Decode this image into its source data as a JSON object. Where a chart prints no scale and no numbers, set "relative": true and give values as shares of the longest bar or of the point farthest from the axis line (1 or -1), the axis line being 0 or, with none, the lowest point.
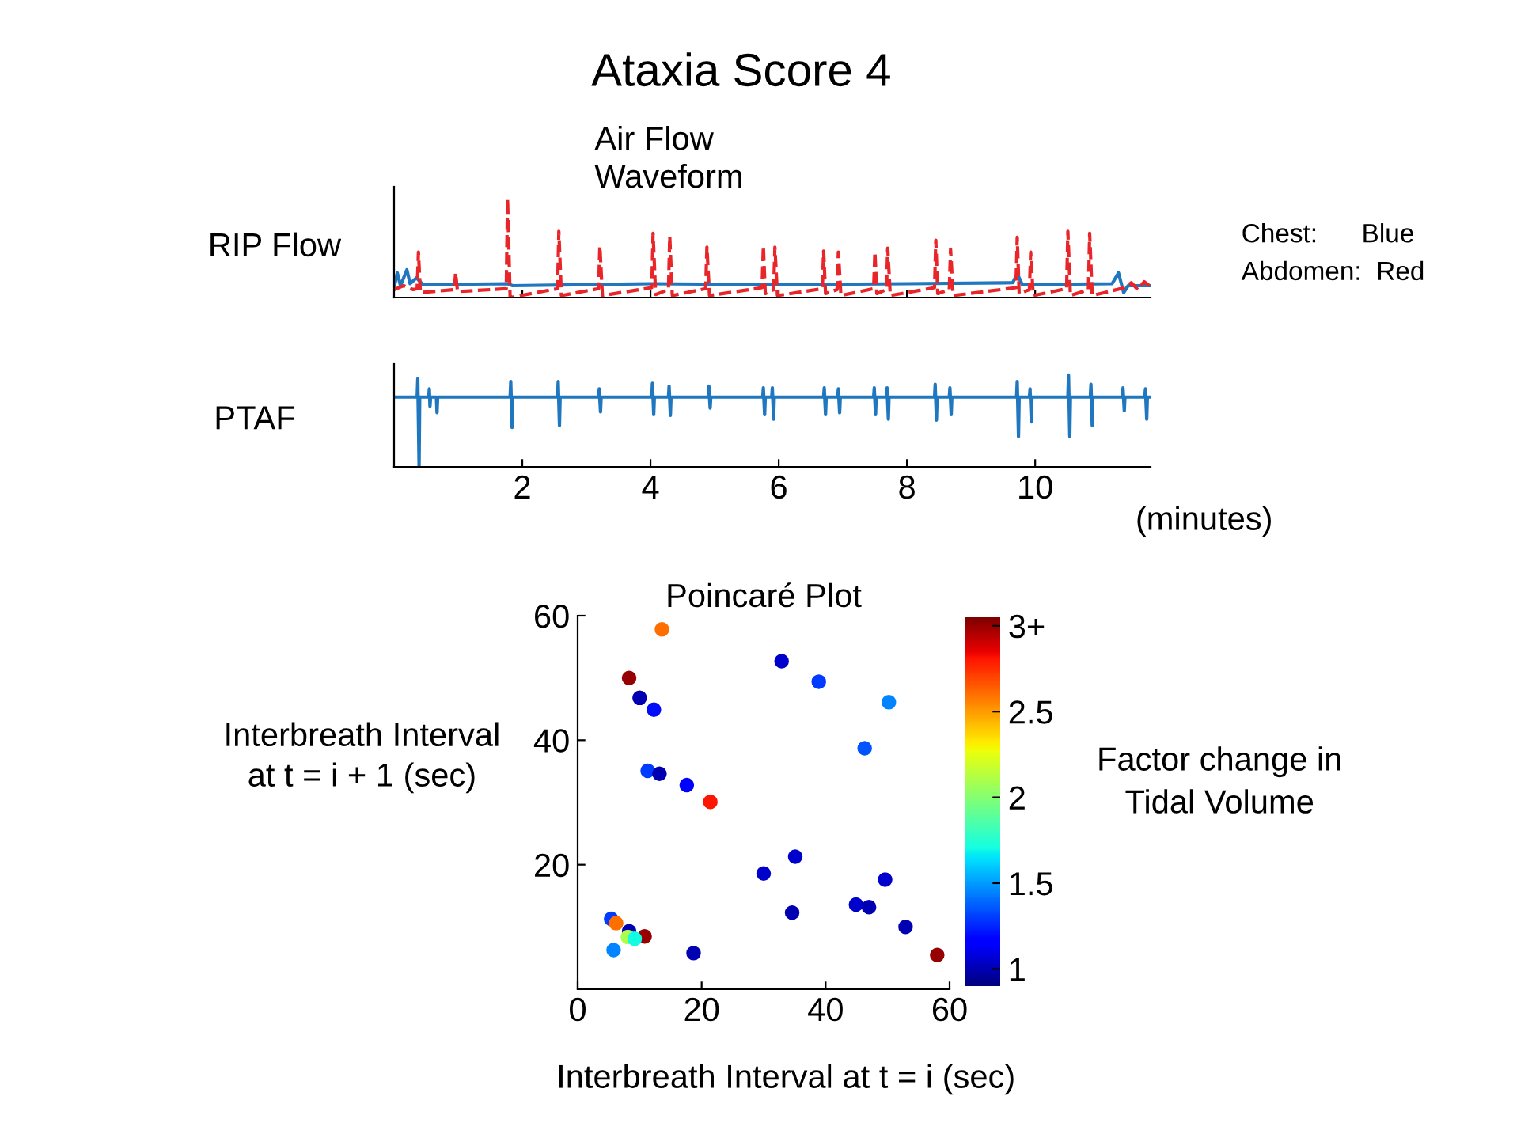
{
  "chart_data": [
    {
      "type": "line",
      "title": "Ataxia Score 4",
      "subtitle": "Air Flow\nWaveform",
      "ylabel": "RIP Flow",
      "relative": true,
      "xlim": [
        0,
        11.8
      ],
      "xticks": [
        2,
        4,
        6,
        8,
        10
      ],
      "tick_labels": false,
      "annotations": [
        "Chest:      Blue",
        "Abdomen:  Red"
      ],
      "series": [
        {
          "color": "#1f77c0",
          "line_style": "solid",
          "x": [
            0,
            0.05,
            0.1,
            0.2,
            0.25,
            0.35,
            0.45,
            1.77,
            1.85,
            4,
            6,
            8,
            9.65,
            9.72,
            9.8,
            11.2,
            11.3,
            11.38,
            11.45,
            11.78
          ],
          "values": [
            0.1,
            0.25,
            0.12,
            0.28,
            0.14,
            0.2,
            0.13,
            0.14,
            0.12,
            0.14,
            0.13,
            0.14,
            0.15,
            0.24,
            0.13,
            0.14,
            0.25,
            0.05,
            0.12,
            0.12
          ]
        },
        {
          "color": "#e8262a",
          "line_style": "dashed",
          "x": [
            0,
            0.15,
            0.3,
            0.36,
            0.38,
            0.41,
            0.94,
            0.96,
            0.99,
            1.75,
            1.77,
            1.81,
            2.55,
            2.57,
            2.61,
            3.19,
            3.21,
            3.25,
            4.02,
            4.04,
            4.08,
            4.28,
            4.3,
            4.34,
            4.86,
            4.88,
            4.92,
            5.74,
            5.76,
            5.79,
            5.92,
            5.94,
            5.98,
            6.68,
            6.7,
            6.73,
            6.91,
            6.93,
            6.97,
            7.48,
            7.5,
            7.53,
            7.68,
            7.7,
            7.74,
            8.43,
            8.45,
            8.48,
            8.66,
            8.68,
            8.72,
            9.7,
            9.72,
            9.75,
            9.91,
            9.93,
            9.97,
            10.49,
            10.51,
            10.55,
            10.83,
            10.85,
            10.89,
            11.4,
            11.5,
            11.6,
            11.7,
            11.78
          ],
          "values": [
            0.08,
            0.12,
            0.08,
            0.09,
            0.46,
            0.05,
            0.08,
            0.25,
            0.06,
            0.09,
            1.0,
            0.0,
            0.09,
            0.67,
            0.02,
            0.09,
            0.52,
            0.02,
            0.1,
            0.65,
            0.03,
            0.08,
            0.62,
            0.02,
            0.09,
            0.51,
            0.02,
            0.1,
            0.52,
            0.04,
            0.08,
            0.51,
            0.02,
            0.09,
            0.47,
            0.04,
            0.08,
            0.46,
            0.02,
            0.09,
            0.46,
            0.04,
            0.08,
            0.5,
            0.02,
            0.1,
            0.58,
            0.04,
            0.08,
            0.49,
            0.02,
            0.1,
            0.61,
            0.04,
            0.08,
            0.46,
            0.02,
            0.09,
            0.67,
            0.02,
            0.08,
            0.65,
            0.02,
            0.1,
            0.15,
            0.08,
            0.16,
            0.12
          ]
        }
      ]
    },
    {
      "type": "line",
      "ylabel": "PTAF",
      "xlabel": "(minutes)",
      "relative": true,
      "xlim": [
        0,
        11.8
      ],
      "xticks": [
        2,
        4,
        6,
        8,
        10
      ],
      "tick_labels": "x",
      "series": [
        {
          "color": "#1f77c0",
          "line_style": "solid",
          "x": [
            0,
            0.36,
            0.37,
            0.39,
            0.4,
            0.54,
            0.55,
            0.56,
            0.57,
            0.66,
            0.67,
            0.68,
            1.81,
            1.82,
            1.84,
            1.85,
            2.55,
            2.56,
            2.58,
            2.59,
            3.19,
            3.2,
            3.22,
            3.23,
            4.02,
            4.03,
            4.05,
            4.06,
            4.28,
            4.29,
            4.31,
            4.32,
            4.9,
            4.91,
            4.93,
            4.94,
            5.75,
            5.76,
            5.78,
            5.79,
            5.89,
            5.9,
            5.92,
            5.93,
            6.7,
            6.71,
            6.73,
            6.74,
            6.92,
            6.93,
            6.95,
            6.96,
            7.48,
            7.49,
            7.51,
            7.52,
            7.68,
            7.69,
            7.71,
            7.72,
            8.43,
            8.44,
            8.46,
            8.47,
            8.66,
            8.67,
            8.69,
            8.7,
            9.71,
            9.72,
            9.74,
            9.75,
            9.91,
            9.92,
            9.94,
            9.95,
            10.51,
            10.52,
            10.54,
            10.55,
            10.86,
            10.87,
            10.89,
            10.9,
            11.36,
            11.37,
            11.39,
            11.4,
            11.71,
            11.72,
            11.74,
            11.75,
            11.78
          ],
          "values": [
            0.76,
            0.76,
            0.96,
            0.0,
            0.76,
            0.76,
            0.85,
            0.66,
            0.76,
            0.76,
            0.59,
            0.76,
            0.76,
            0.93,
            0.43,
            0.76,
            0.76,
            0.93,
            0.45,
            0.76,
            0.76,
            0.85,
            0.6,
            0.76,
            0.76,
            0.91,
            0.57,
            0.76,
            0.76,
            0.88,
            0.56,
            0.76,
            0.76,
            0.88,
            0.64,
            0.76,
            0.76,
            0.86,
            0.57,
            0.76,
            0.76,
            0.86,
            0.52,
            0.76,
            0.76,
            0.86,
            0.57,
            0.76,
            0.76,
            0.85,
            0.59,
            0.76,
            0.76,
            0.86,
            0.57,
            0.76,
            0.76,
            0.86,
            0.52,
            0.76,
            0.76,
            0.9,
            0.51,
            0.76,
            0.76,
            0.86,
            0.57,
            0.76,
            0.76,
            0.93,
            0.33,
            0.76,
            0.76,
            0.85,
            0.49,
            0.76,
            0.76,
            1.0,
            0.33,
            0.76,
            0.76,
            0.9,
            0.45,
            0.76,
            0.76,
            0.86,
            0.61,
            0.76,
            0.76,
            0.85,
            0.52,
            0.76,
            0.76
          ]
        }
      ]
    },
    {
      "type": "scatter",
      "title": "Poincaré Plot",
      "xlabel": "Interbreath Interval at t = i (sec)",
      "ylabel": "Interbreath Interval\nat t = i + 1 (sec)",
      "clabel": "Factor change in\nTidal Volume",
      "xlim": [
        0,
        60
      ],
      "ylim": [
        0,
        60
      ],
      "xticks": [
        0,
        20,
        40,
        60
      ],
      "yticks": [
        20,
        40,
        60
      ],
      "clim": [
        0.9,
        3.05
      ],
      "cticks": [
        1,
        1.5,
        2,
        2.5,
        {
          "value": 3,
          "label": "3+"
        }
      ],
      "x": [
        13.6,
        8.3,
        10.0,
        12.3,
        11.3,
        13.2,
        17.6,
        21.4,
        32.9,
        38.9,
        50.2,
        46.3,
        35.1,
        30.0,
        49.6,
        44.9,
        47.0,
        34.6,
        52.9,
        58.0,
        18.7,
        5.4,
        6.2,
        8.3,
        10.8,
        8.1,
        9.2,
        5.8
      ],
      "values": [
        57.8,
        50.0,
        46.8,
        44.9,
        35.1,
        34.6,
        32.8,
        30.1,
        52.7,
        49.4,
        46.1,
        38.7,
        21.3,
        18.6,
        17.6,
        13.6,
        13.2,
        12.3,
        10.0,
        5.5,
        5.8,
        11.3,
        10.6,
        9.3,
        8.5,
        8.4,
        8.1,
        6.3
      ],
      "cvalues": [
        2.6,
        3.0,
        1.0,
        1.2,
        1.3,
        1.0,
        1.15,
        2.8,
        1.05,
        1.3,
        1.45,
        1.35,
        1.05,
        1.05,
        1.05,
        1.05,
        1.0,
        1.0,
        1.0,
        3.0,
        1.0,
        1.3,
        2.6,
        1.0,
        3.0,
        2.1,
        1.7,
        1.45
      ]
    }
  ]
}
